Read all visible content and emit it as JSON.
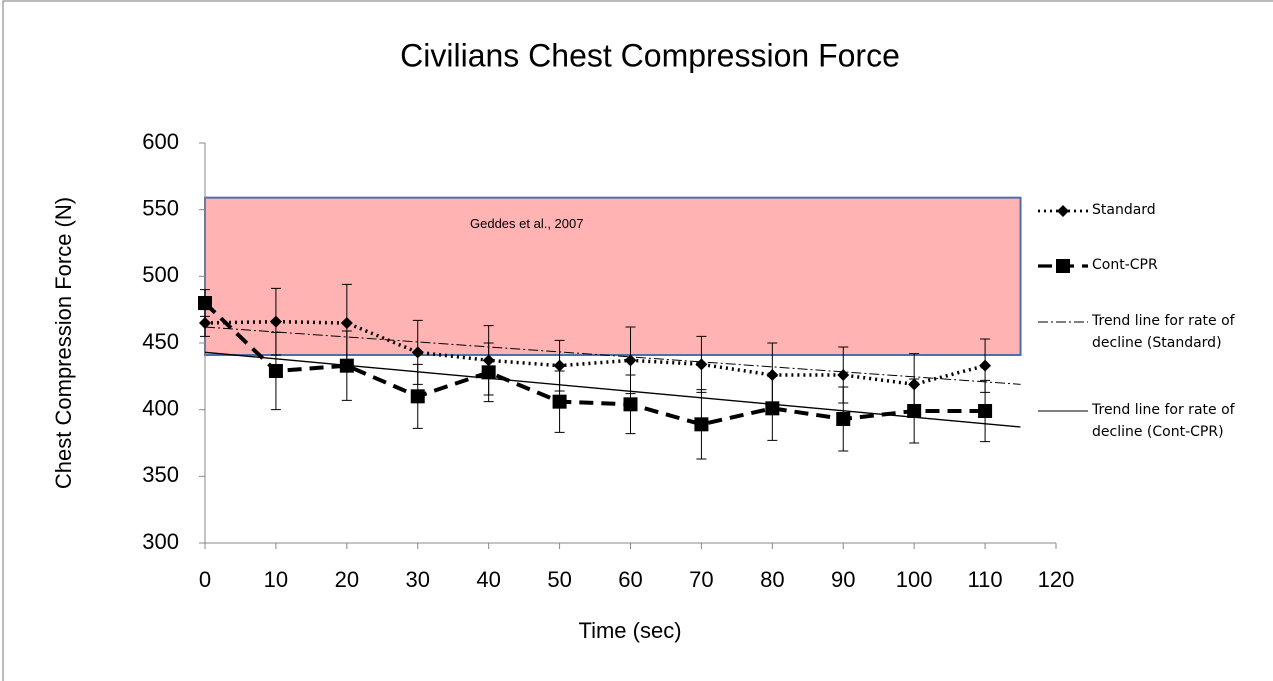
{
  "chart_data": {
    "type": "line",
    "title": "Civilians Chest Compression Force",
    "xlabel": "Time (sec)",
    "ylabel": "Chest Compression Force (N)",
    "xlim": [
      0,
      120
    ],
    "xticks": [
      0,
      10,
      20,
      30,
      40,
      50,
      60,
      70,
      80,
      90,
      100,
      110,
      120
    ],
    "ylim": [
      300,
      600
    ],
    "yticks": [
      300,
      350,
      400,
      450,
      500,
      550,
      600
    ],
    "grid": false,
    "legend": "right",
    "band": {
      "label": "Geddes et al., 2007",
      "x": [
        0,
        115
      ],
      "y": [
        441,
        559
      ],
      "color": "#ffb3b3",
      "edge": "#4f6fa8"
    },
    "series": [
      {
        "name": "Standard",
        "color": "#000000",
        "dash": "dotted",
        "marker": "diamond",
        "x": [
          0,
          10,
          20,
          30,
          40,
          50,
          60,
          70,
          80,
          90,
          100,
          110
        ],
        "values": [
          465,
          466,
          465,
          443,
          437,
          433,
          437,
          434,
          426,
          426,
          419,
          433
        ],
        "errors": [
          10,
          25,
          29,
          24,
          26,
          19,
          25,
          21,
          24,
          21,
          23,
          20
        ]
      },
      {
        "name": "Cont-CPR",
        "color": "#000000",
        "dash": "dashed",
        "marker": "square",
        "x": [
          0,
          10,
          20,
          30,
          40,
          50,
          60,
          70,
          80,
          90,
          100,
          110
        ],
        "values": [
          480,
          429,
          433,
          410,
          428,
          406,
          404,
          389,
          401,
          393,
          399,
          399
        ],
        "errors": [
          10,
          29,
          26,
          24,
          22,
          23,
          22,
          26,
          24,
          24,
          24,
          23
        ]
      },
      {
        "name": "Trend line for rate of decline (Standard)",
        "color": "#000000",
        "dash": "dashdot",
        "marker": "none",
        "x": [
          0,
          115
        ],
        "values": [
          462,
          419
        ]
      },
      {
        "name": "Trend line for rate of decline (Cont-CPR)",
        "color": "#000000",
        "dash": "solid",
        "marker": "none",
        "x": [
          0,
          115
        ],
        "values": [
          443,
          387
        ]
      }
    ]
  }
}
